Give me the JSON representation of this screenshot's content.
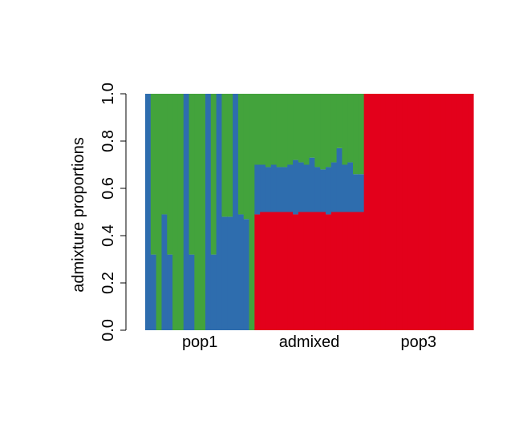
{
  "chart_data": {
    "type": "bar",
    "stacked": true,
    "title": "",
    "xlabel": "",
    "ylabel": "admixture proportions",
    "ylim": [
      0,
      1
    ],
    "y_ticks": [
      "0.0",
      "0.2",
      "0.4",
      "0.6",
      "0.8",
      "1.0"
    ],
    "groups": [
      {
        "label": "pop1",
        "start": 0,
        "end": 20
      },
      {
        "label": "admixed",
        "start": 20,
        "end": 40
      },
      {
        "label": "pop3",
        "start": 40,
        "end": 60
      }
    ],
    "series": [
      {
        "color": "#E3001B",
        "values": [
          0,
          0,
          0,
          0,
          0,
          0,
          0,
          0,
          0,
          0,
          0,
          0,
          0,
          0,
          0,
          0,
          0,
          0,
          0,
          0,
          0.49,
          0.5,
          0.5,
          0.5,
          0.5,
          0.5,
          0.5,
          0.49,
          0.5,
          0.5,
          0.5,
          0.5,
          0.5,
          0.49,
          0.5,
          0.5,
          0.5,
          0.5,
          0.5,
          0.5,
          1,
          1,
          1,
          1,
          1,
          1,
          1,
          1,
          1,
          1,
          1,
          1,
          1,
          1,
          1,
          1,
          1,
          1,
          1,
          1
        ]
      },
      {
        "color": "#2E6DAE",
        "values": [
          1.0,
          0.32,
          0,
          0.49,
          0.32,
          0,
          0,
          1.0,
          0.32,
          0,
          0,
          1.0,
          0.32,
          1.0,
          0.48,
          0.48,
          1.0,
          0.49,
          0.47,
          0,
          0.21,
          0.2,
          0.19,
          0.2,
          0.19,
          0.19,
          0.2,
          0.23,
          0.21,
          0.2,
          0.23,
          0.19,
          0.18,
          0.2,
          0.21,
          0.27,
          0.2,
          0.21,
          0.16,
          0.16,
          0,
          0,
          0,
          0,
          0,
          0,
          0,
          0,
          0,
          0,
          0,
          0,
          0,
          0,
          0,
          0,
          0,
          0,
          0,
          0
        ]
      },
      {
        "color": "#43A33C",
        "values": [
          0,
          0.68,
          1.0,
          0.51,
          0.68,
          1.0,
          1.0,
          0,
          0.68,
          1.0,
          1.0,
          0,
          0.68,
          0,
          0.52,
          0.52,
          0,
          0.51,
          0.53,
          1.0,
          0.3,
          0.3,
          0.31,
          0.3,
          0.31,
          0.31,
          0.3,
          0.28,
          0.29,
          0.3,
          0.27,
          0.31,
          0.32,
          0.31,
          0.29,
          0.23,
          0.3,
          0.29,
          0.34,
          0.34,
          0,
          0,
          0,
          0,
          0,
          0,
          0,
          0,
          0,
          0,
          0,
          0,
          0,
          0,
          0,
          0,
          0,
          0,
          0,
          0
        ]
      }
    ]
  }
}
